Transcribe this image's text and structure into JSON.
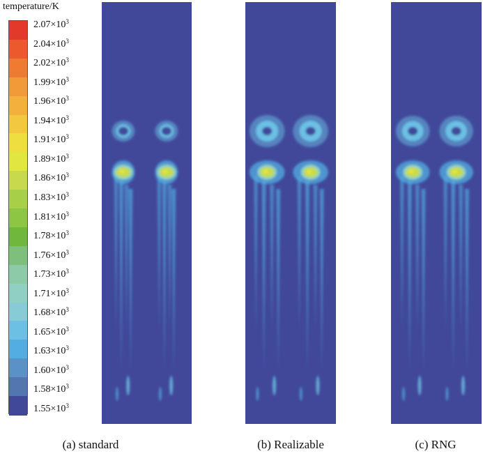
{
  "legend": {
    "title": "temperature/K",
    "ticks": [
      {
        "mantissa": "2.07",
        "times": "×10",
        "exp": "3"
      },
      {
        "mantissa": "2.04",
        "times": "×10",
        "exp": "3"
      },
      {
        "mantissa": "2.02",
        "times": "×10",
        "exp": "3"
      },
      {
        "mantissa": "1.99",
        "times": "×10",
        "exp": "3"
      },
      {
        "mantissa": "1.96",
        "times": "×10",
        "exp": "3"
      },
      {
        "mantissa": "1.94",
        "times": "×10",
        "exp": "3"
      },
      {
        "mantissa": "1.91",
        "times": "×10",
        "exp": "3"
      },
      {
        "mantissa": "1.89",
        "times": "×10",
        "exp": "3"
      },
      {
        "mantissa": "1.86",
        "times": "×10",
        "exp": "3"
      },
      {
        "mantissa": "1.83",
        "times": "×10",
        "exp": "3"
      },
      {
        "mantissa": "1.81",
        "times": "×10",
        "exp": "3"
      },
      {
        "mantissa": "1.78",
        "times": "×10",
        "exp": "3"
      },
      {
        "mantissa": "1.76",
        "times": "×10",
        "exp": "3"
      },
      {
        "mantissa": "1.73",
        "times": "×10",
        "exp": "3"
      },
      {
        "mantissa": "1.71",
        "times": "×10",
        "exp": "3"
      },
      {
        "mantissa": "1.68",
        "times": "×10",
        "exp": "3"
      },
      {
        "mantissa": "1.65",
        "times": "×10",
        "exp": "3"
      },
      {
        "mantissa": "1.63",
        "times": "×10",
        "exp": "3"
      },
      {
        "mantissa": "1.60",
        "times": "×10",
        "exp": "3"
      },
      {
        "mantissa": "1.58",
        "times": "×10",
        "exp": "3"
      },
      {
        "mantissa": "1.55",
        "times": "×10",
        "exp": "3"
      }
    ],
    "colors": [
      "#e23a2a",
      "#ea5a2c",
      "#ef7a31",
      "#f39a38",
      "#f4b03c",
      "#f2c840",
      "#eede3f",
      "#e2e640",
      "#c8da4c",
      "#a8cf48",
      "#8cc642",
      "#6fb83c",
      "#7ebf7c",
      "#8ccaa8",
      "#8fd0c2",
      "#86cbd6",
      "#6cc0e4",
      "#52aee2",
      "#5a92c8",
      "#5276b0",
      "#41489a"
    ]
  },
  "panels": [
    {
      "caption": "(a) standard"
    },
    {
      "caption": "(b) Realizable"
    },
    {
      "caption": "(c) RNG"
    }
  ]
}
